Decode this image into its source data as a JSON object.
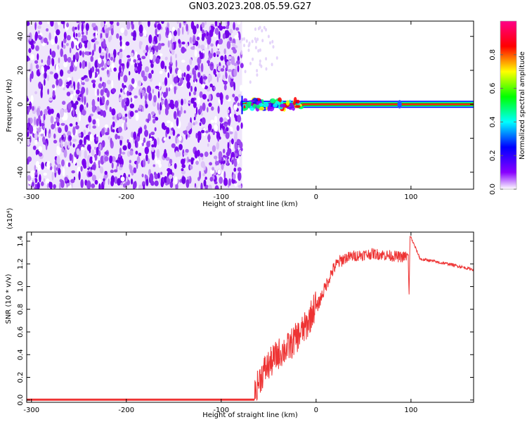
{
  "title": "GN03.2023.208.05.59.G27",
  "chart_data": [
    {
      "type": "heatmap",
      "xlabel": "Height of straight line (km)",
      "ylabel": "Frequency (Hz)",
      "xlim": [
        -305,
        166
      ],
      "ylim": [
        -50,
        49
      ],
      "x_ticks": [
        -300,
        -200,
        -100,
        0,
        100
      ],
      "y_ticks": [
        -40,
        -20,
        0,
        20,
        40
      ],
      "noise_region_x": [
        -305,
        -78
      ],
      "signal_line": {
        "x_start": -78,
        "x_end": 166,
        "frequency": 0
      },
      "colorbar": {
        "label": "Normalized spectral amplitude",
        "range": [
          0,
          1
        ],
        "ticks": [
          0.0,
          0.2,
          0.4,
          0.6,
          0.8
        ],
        "colormap": [
          "#ffffff",
          "#8800ff",
          "#0000ff",
          "#00ffff",
          "#00ff00",
          "#ffff00",
          "#ff0000",
          "#ff00aa"
        ]
      }
    },
    {
      "type": "line",
      "xlabel": "Height of straight line (km)",
      "ylabel": "SNR (10 * v/v)",
      "y_multiplier": "(x10⁴)",
      "xlim": [
        -305,
        166
      ],
      "ylim": [
        -0.02,
        1.48
      ],
      "x_ticks": [
        -300,
        -200,
        -100,
        0,
        100
      ],
      "y_ticks": [
        0.0,
        0.2,
        0.4,
        0.6,
        0.8,
        1.0,
        1.2,
        1.4
      ],
      "color": "#ee3333",
      "series": [
        {
          "x": [
            -305,
            -250,
            -200,
            -150,
            -100,
            -70,
            -64,
            -60,
            -55,
            -50,
            -45,
            -40,
            -35,
            -30,
            -25,
            -20,
            -15,
            -10,
            -5,
            0,
            5,
            10,
            15,
            20,
            25,
            30,
            40,
            50,
            60,
            70,
            80,
            90,
            97,
            98,
            99,
            110,
            120,
            130,
            140,
            150,
            160,
            166
          ],
          "y": [
            0.0,
            0.0,
            0.0,
            0.0,
            0.0,
            0.0,
            0.0,
            0.12,
            0.2,
            0.25,
            0.3,
            0.35,
            0.38,
            0.4,
            0.45,
            0.5,
            0.55,
            0.6,
            0.7,
            0.8,
            0.9,
            1.0,
            1.1,
            1.18,
            1.22,
            1.25,
            1.27,
            1.28,
            1.29,
            1.28,
            1.27,
            1.26,
            1.27,
            0.9,
            1.45,
            1.24,
            1.23,
            1.21,
            1.2,
            1.18,
            1.16,
            1.15
          ]
        }
      ]
    }
  ]
}
